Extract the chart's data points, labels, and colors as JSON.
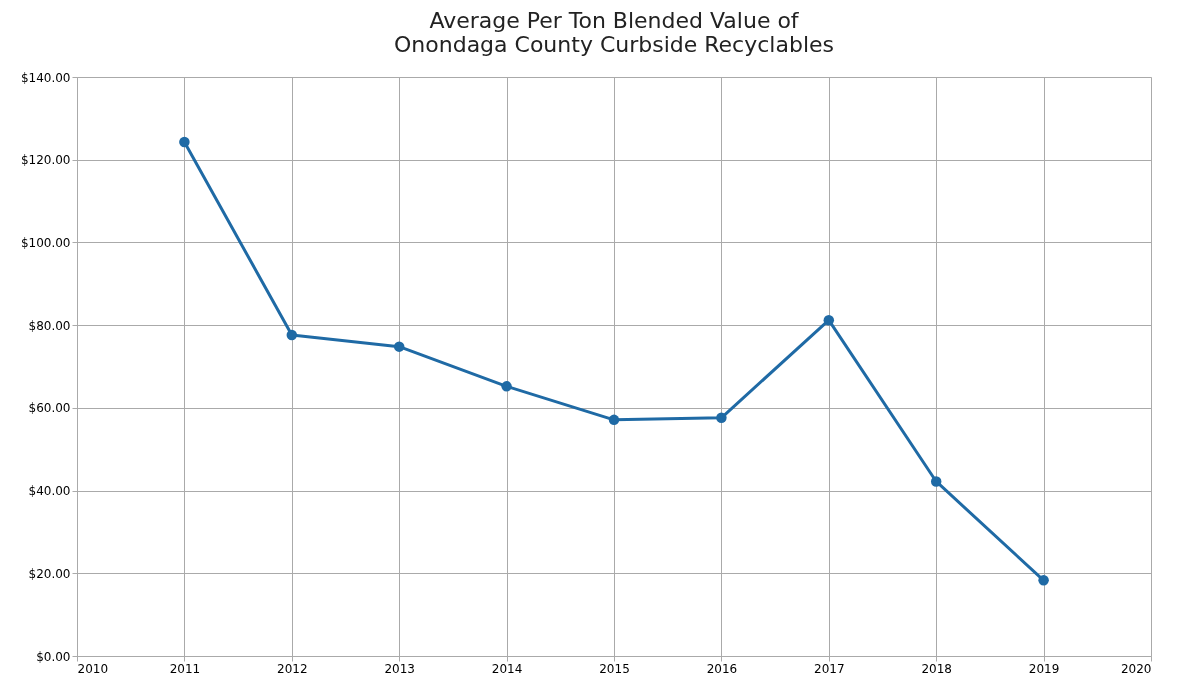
{
  "chart_data": {
    "type": "line",
    "title": [
      "Average Per Ton Blended Value of",
      "Onondaga County Curbside Recyclables"
    ],
    "x": [
      2011,
      2012,
      2013,
      2014,
      2015,
      2016,
      2017,
      2018,
      2019
    ],
    "series": [
      {
        "color": "#1f6aa5",
        "values": [
          124.3,
          77.6,
          74.8,
          65.2,
          57.1,
          57.6,
          81.2,
          42.2,
          18.3
        ]
      }
    ],
    "xlim": [
      2010,
      2020
    ],
    "xticks": [
      2010,
      2011,
      2012,
      2013,
      2014,
      2015,
      2016,
      2017,
      2018,
      2019,
      2020
    ],
    "ylim": [
      0,
      140
    ],
    "yticks": [
      {
        "value": 0,
        "label": "$0.00"
      },
      {
        "value": 20,
        "label": "$20.00"
      },
      {
        "value": 40,
        "label": "$40.00"
      },
      {
        "value": 60,
        "label": "$60.00"
      },
      {
        "value": 80,
        "label": "$80.00"
      },
      {
        "value": 100,
        "label": "$100.00"
      },
      {
        "value": 120,
        "label": "$120.00"
      },
      {
        "value": 140,
        "label": "$140.00"
      }
    ],
    "grid": true,
    "marker": "circle",
    "line_style": "solid"
  }
}
